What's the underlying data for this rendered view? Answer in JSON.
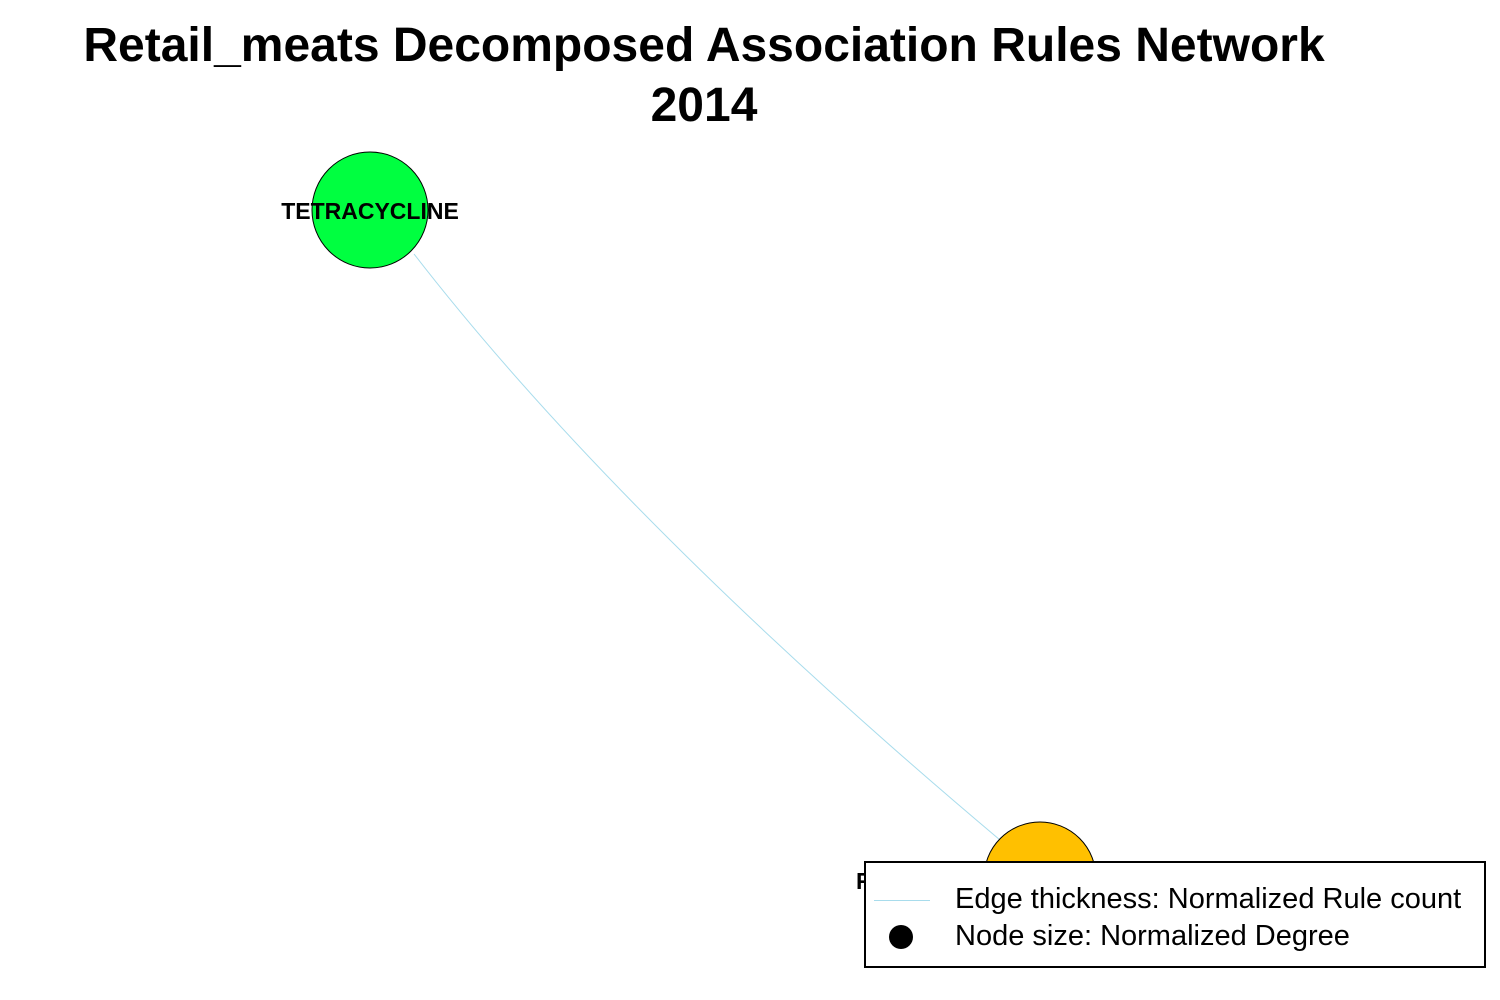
{
  "title": {
    "line1": "Retail_meats Decomposed Association Rules Network",
    "line2": "2014"
  },
  "network": {
    "nodes": [
      {
        "id": "tetracycline",
        "label": "TETRACYCLINE",
        "color": "#00ff40"
      },
      {
        "id": "second-node",
        "label": "R",
        "color": "#ffc000"
      }
    ],
    "edges": [
      {
        "from": "tetracycline",
        "to": "second-node",
        "color": "#a8dcec"
      }
    ]
  },
  "legend": {
    "edge_label": "Edge thickness: Normalized Rule count",
    "node_label": "Node size: Normalized Degree",
    "edge_color": "#a8dcec",
    "node_symbol_color": "#000000"
  }
}
